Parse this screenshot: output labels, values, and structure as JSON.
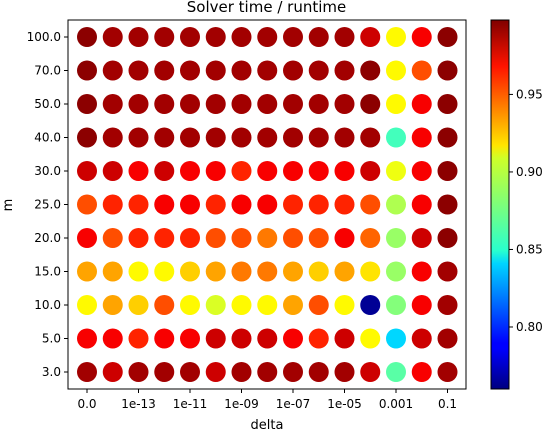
{
  "chart_data": {
    "type": "scatter",
    "title": "Solver time / runtime",
    "xlabel": "delta",
    "ylabel": "m",
    "x_categories": [
      "0.0",
      "1e-14",
      "1e-13",
      "1e-12",
      "1e-11",
      "1e-10",
      "1e-09",
      "1e-08",
      "1e-07",
      "1e-06",
      "1e-05",
      "0.0001",
      "0.001",
      "0.01",
      "0.1"
    ],
    "x_tick_labels_shown": [
      "0.0",
      "1e-13",
      "1e-11",
      "1e-09",
      "1e-07",
      "1e-05",
      "0.001",
      "0.1"
    ],
    "y_categories": [
      "3.0",
      "5.0",
      "10.0",
      "15.0",
      "20.0",
      "25.0",
      "30.0",
      "40.0",
      "50.0",
      "70.0",
      "100.0"
    ],
    "colorbar": {
      "colormap": "jet",
      "min": 0.76,
      "max": 0.998,
      "ticks": [
        "0.80",
        "0.85",
        "0.90",
        "0.95"
      ]
    },
    "values": [
      [
        0.99,
        0.98,
        0.99,
        0.99,
        0.99,
        0.98,
        0.99,
        0.99,
        0.99,
        0.99,
        0.99,
        0.98,
        0.87,
        0.97,
        0.99
      ],
      [
        0.97,
        0.97,
        0.96,
        0.97,
        0.97,
        0.98,
        0.98,
        0.98,
        0.97,
        0.96,
        0.98,
        0.91,
        0.84,
        0.98,
        0.99
      ],
      [
        0.91,
        0.93,
        0.92,
        0.95,
        0.91,
        0.9,
        0.91,
        0.91,
        0.93,
        0.95,
        0.91,
        0.765,
        0.88,
        0.97,
        0.99
      ],
      [
        0.93,
        0.93,
        0.91,
        0.91,
        0.92,
        0.93,
        0.94,
        0.94,
        0.93,
        0.92,
        0.93,
        0.915,
        0.885,
        0.97,
        0.99
      ],
      [
        0.97,
        0.95,
        0.96,
        0.96,
        0.96,
        0.95,
        0.95,
        0.94,
        0.95,
        0.95,
        0.97,
        0.945,
        0.885,
        0.98,
        0.995
      ],
      [
        0.95,
        0.96,
        0.96,
        0.97,
        0.97,
        0.96,
        0.97,
        0.97,
        0.96,
        0.96,
        0.96,
        0.95,
        0.89,
        0.97,
        0.995
      ],
      [
        0.98,
        0.98,
        0.97,
        0.98,
        0.97,
        0.97,
        0.96,
        0.97,
        0.97,
        0.97,
        0.97,
        0.98,
        0.905,
        0.97,
        0.995
      ],
      [
        0.995,
        0.99,
        0.99,
        0.99,
        0.99,
        0.99,
        0.99,
        0.99,
        0.99,
        0.99,
        0.99,
        0.99,
        0.865,
        0.97,
        0.995
      ],
      [
        0.995,
        0.99,
        0.99,
        0.99,
        0.99,
        0.99,
        0.99,
        0.99,
        0.99,
        0.99,
        0.99,
        0.995,
        0.91,
        0.97,
        0.995
      ],
      [
        0.995,
        0.99,
        0.99,
        0.99,
        0.99,
        0.99,
        0.99,
        0.99,
        0.99,
        0.99,
        0.99,
        0.995,
        0.91,
        0.95,
        0.995
      ],
      [
        0.995,
        0.99,
        0.99,
        0.99,
        0.99,
        0.99,
        0.99,
        0.99,
        0.99,
        0.99,
        0.99,
        0.98,
        0.91,
        0.97,
        0.995
      ]
    ]
  }
}
